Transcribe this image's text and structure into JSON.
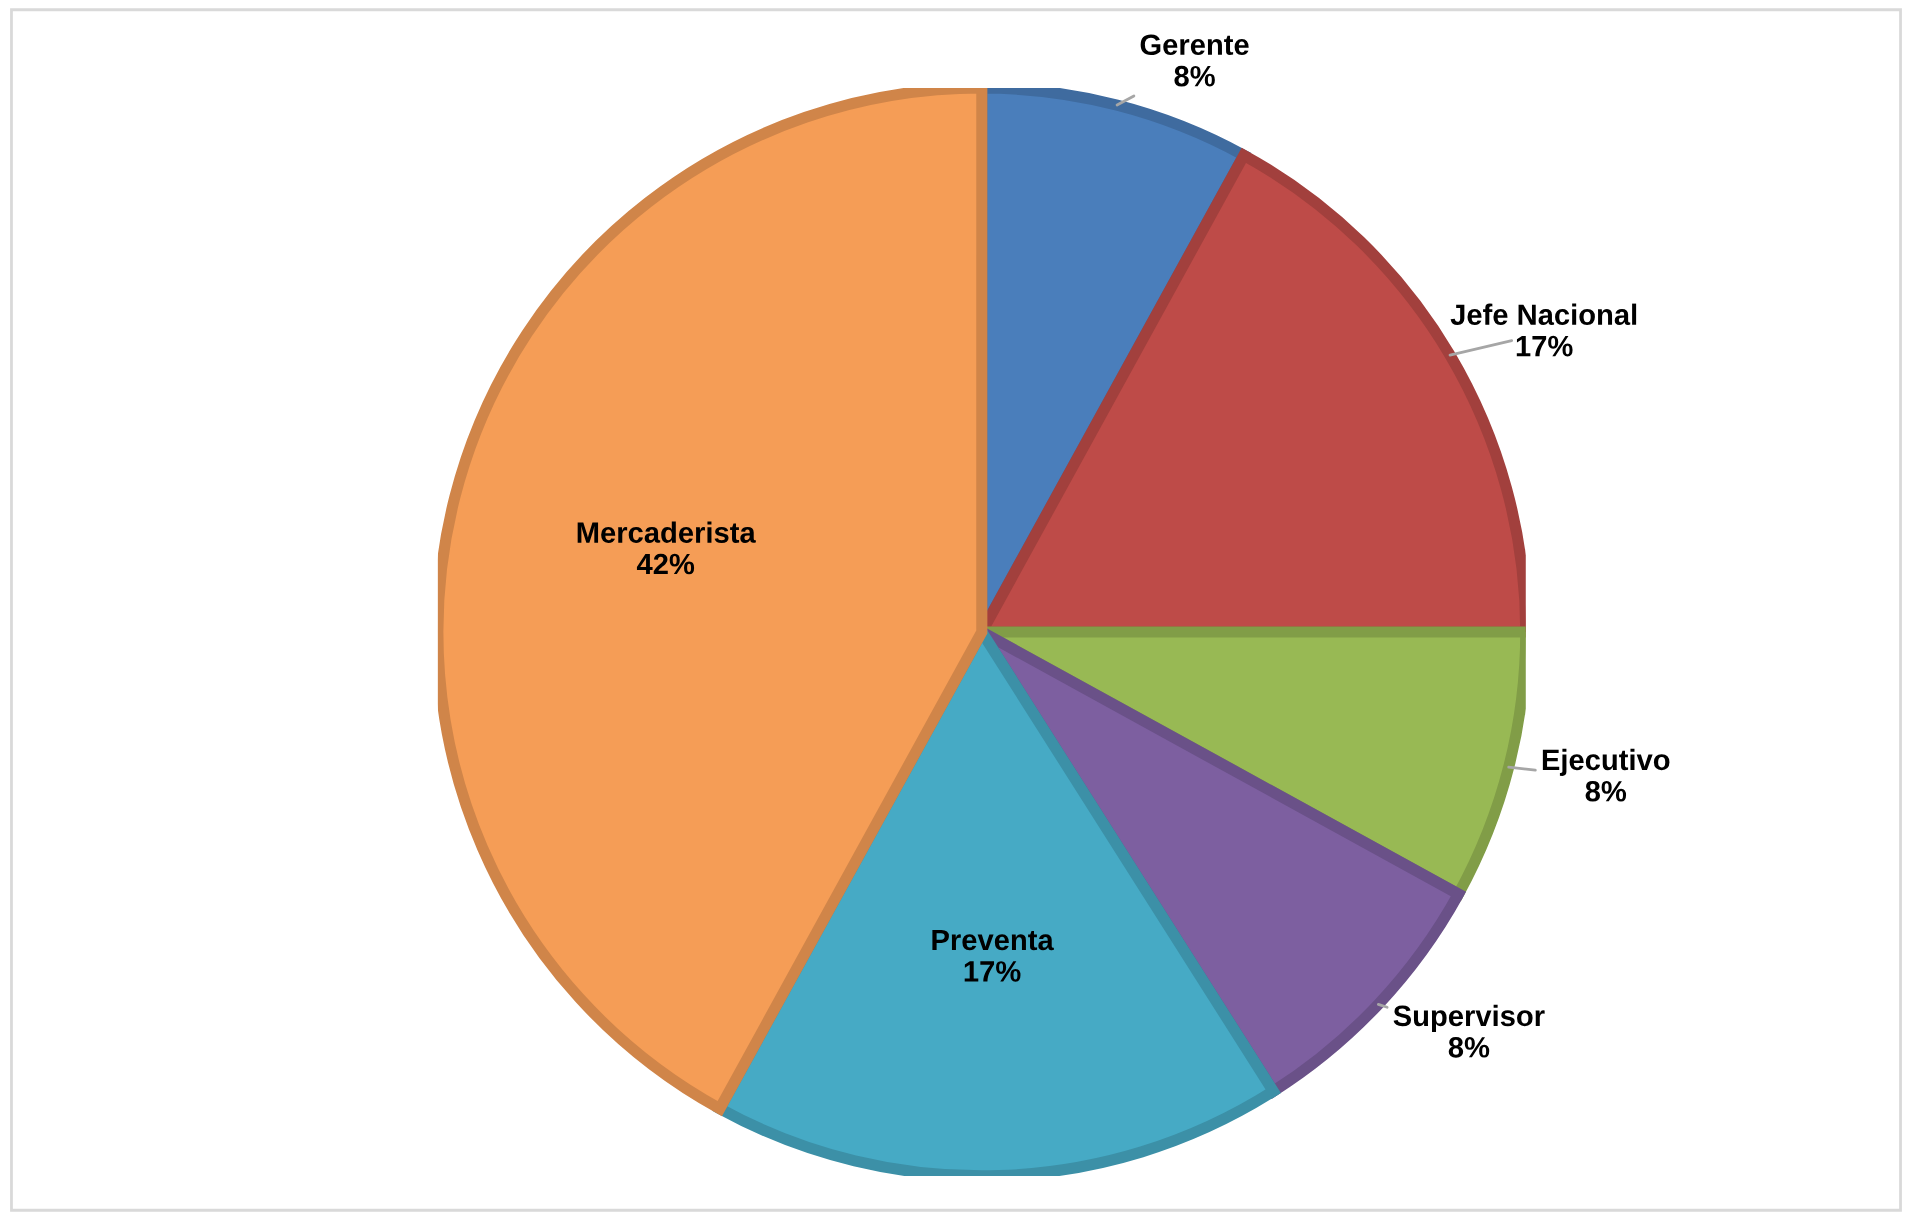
{
  "chart_data": {
    "type": "pie",
    "categories": [
      "Gerente",
      "Jefe Nacional",
      "Ejecutivo",
      "Supervisor",
      "Preventa",
      "Mercaderista"
    ],
    "values": [
      8,
      17,
      8,
      8,
      17,
      42
    ],
    "colors": [
      "#4a7ebb",
      "#be4b48",
      "#98b954",
      "#7d5fa0",
      "#46aac5",
      "#f59d56"
    ],
    "value_labels": [
      "8%",
      "17%",
      "8%",
      "8%",
      "17%",
      "42%"
    ],
    "legend": false
  }
}
